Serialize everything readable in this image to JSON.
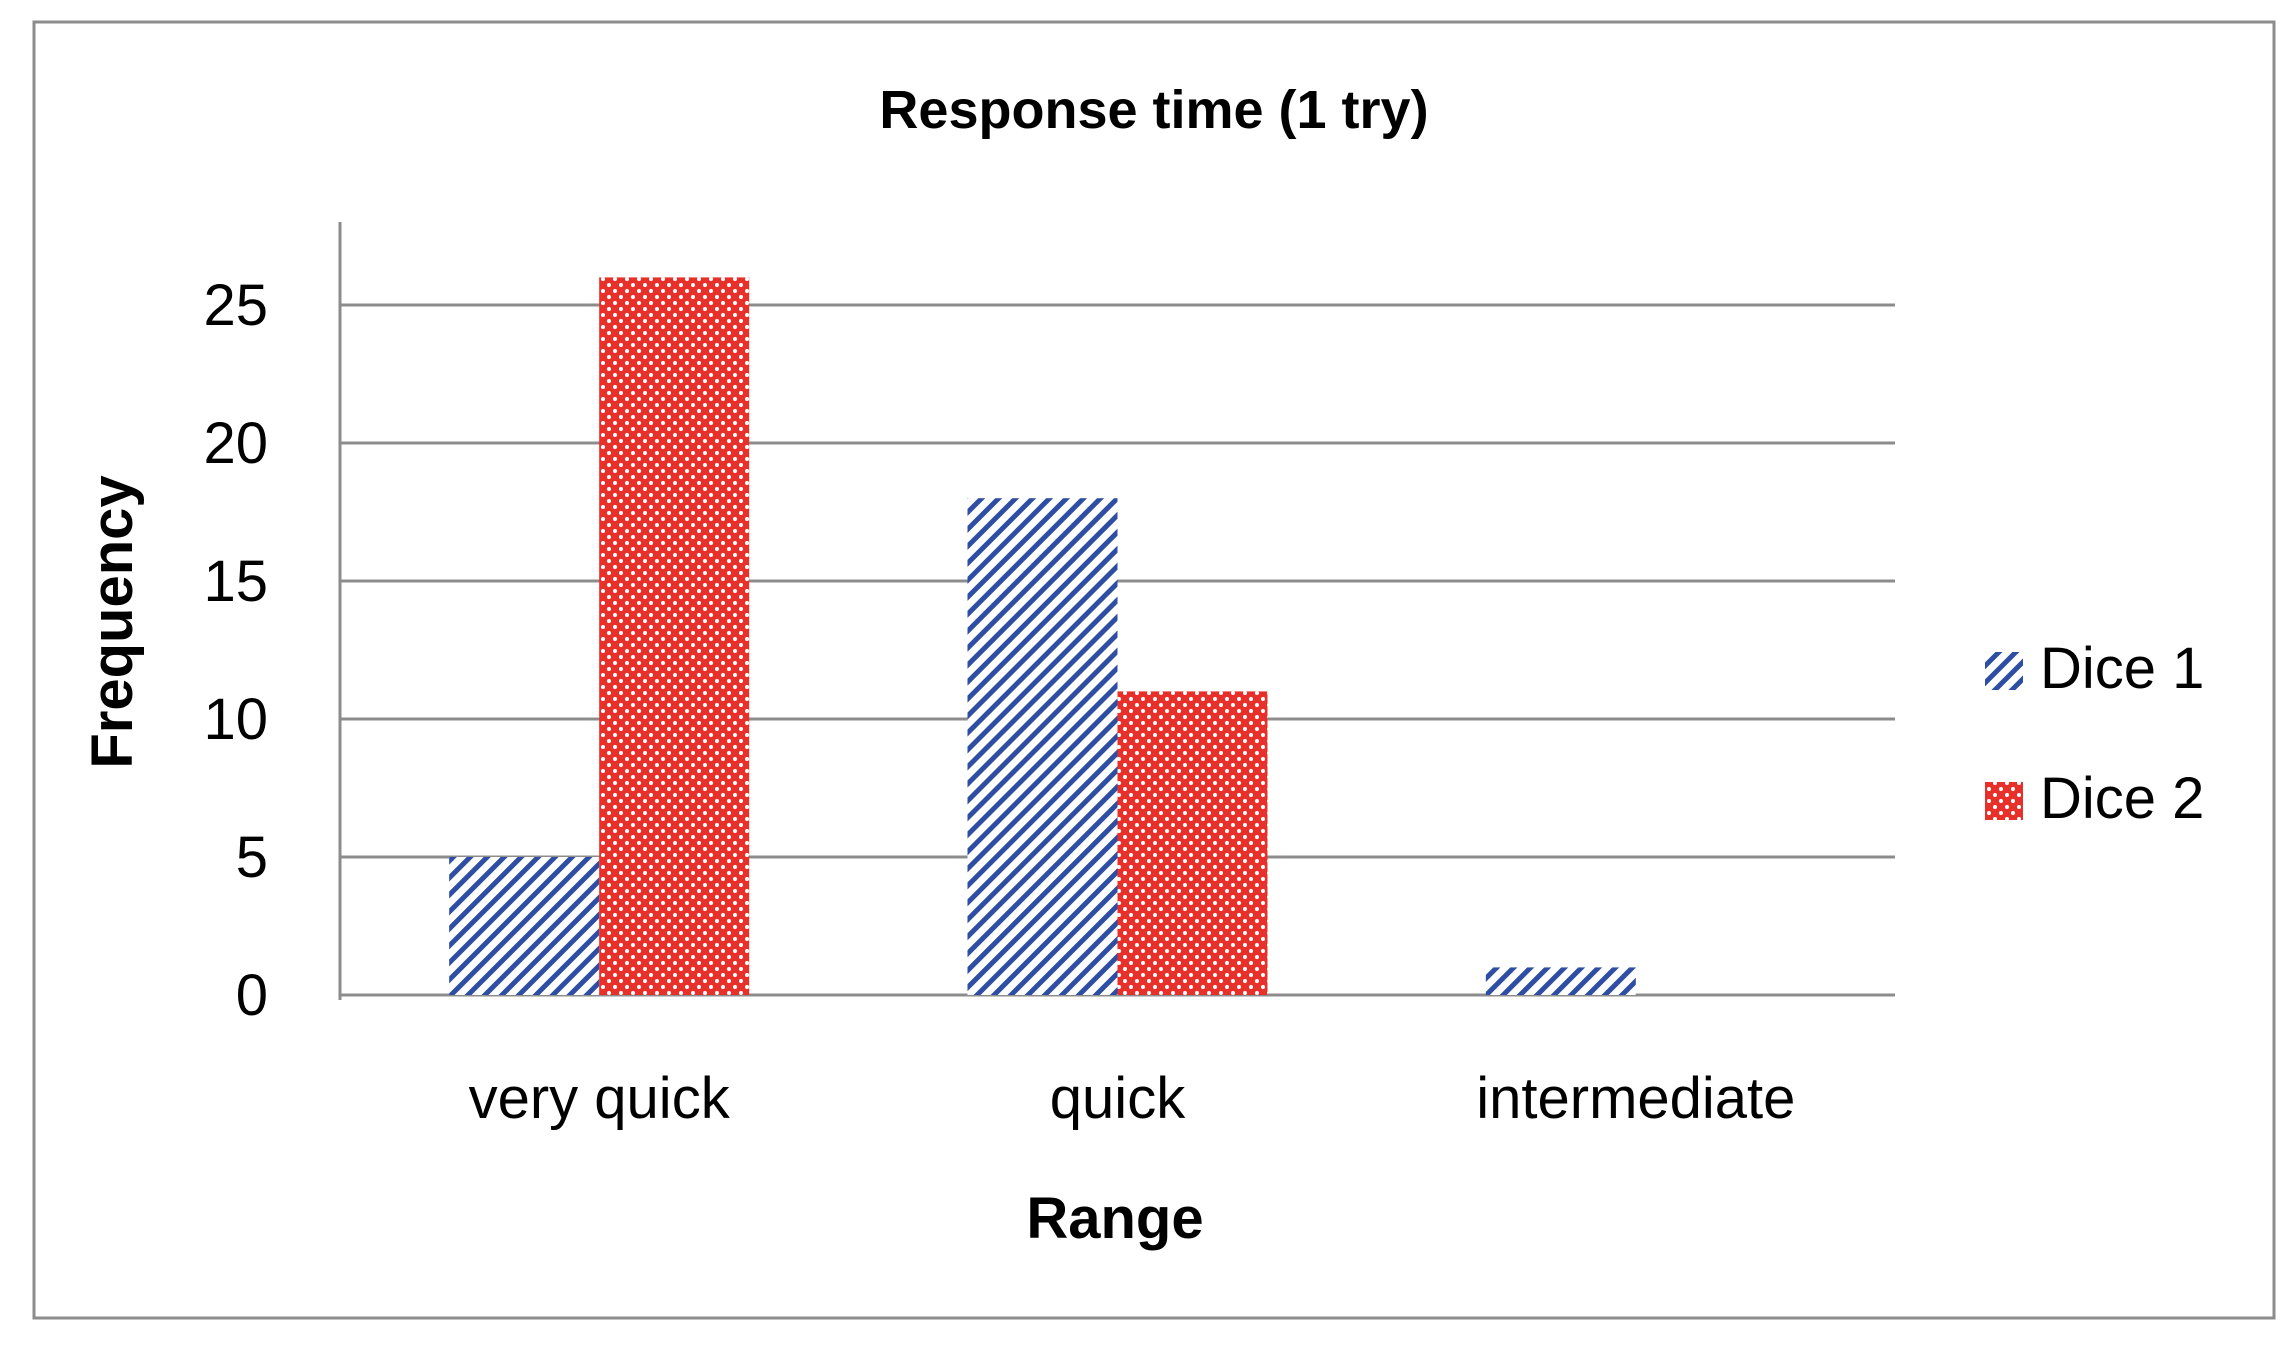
{
  "chart_data": {
    "type": "bar",
    "title": "Response time (1 try)",
    "xlabel": "Range",
    "ylabel": "Frequency",
    "categories": [
      "very quick",
      "quick",
      "intermediate"
    ],
    "series": [
      {
        "name": "Dice 1",
        "values": [
          5,
          18,
          1
        ],
        "color": "#2E4EA3",
        "pattern": "diagonal-hatch"
      },
      {
        "name": "Dice 2",
        "values": [
          26,
          11,
          0
        ],
        "color": "#E8302A",
        "pattern": "dotted"
      }
    ],
    "ylim": [
      0,
      25
    ],
    "yticks": [
      "0",
      "5",
      "10",
      "15",
      "20",
      "25"
    ],
    "grid": true,
    "legend_position": "right"
  }
}
